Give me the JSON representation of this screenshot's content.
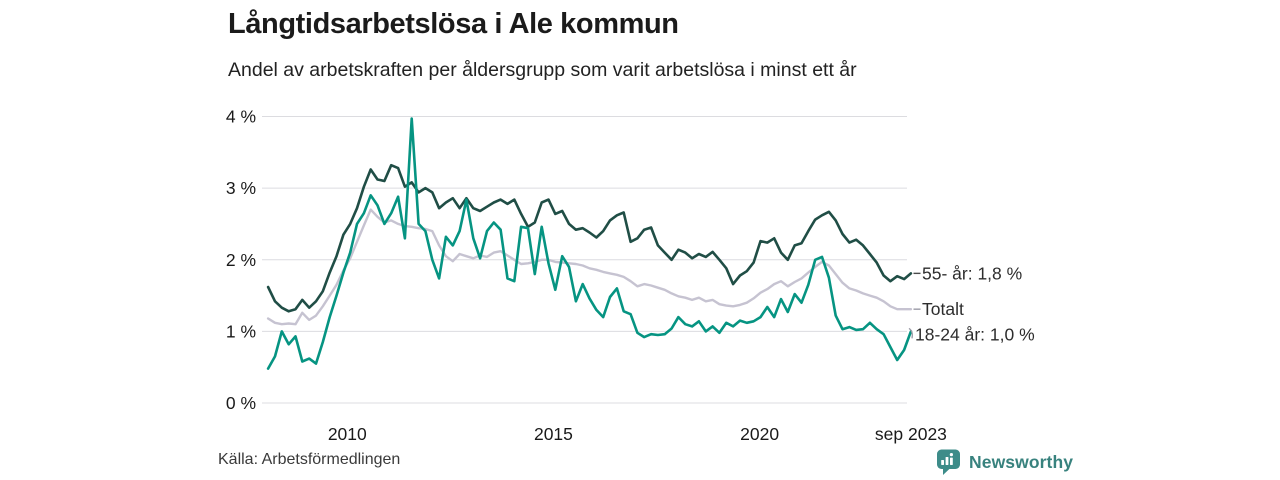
{
  "header": {
    "title": "Långtidsarbetslösa i Ale kommun",
    "subtitle": "Andel av arbetskraften per åldersgrupp som varit arbetslösa i minst ett år"
  },
  "footer": {
    "source": "Källa: Arbetsförmedlingen",
    "brand": "Newsworthy",
    "brand_color": "#38827e",
    "brand_icon": "bar-chart-speech-bubble-icon",
    "brand_icon_color": "#3d8c89"
  },
  "chart_data": {
    "type": "line",
    "title": "Långtidsarbetslösa i Ale kommun",
    "subtitle": "Andel av arbetskraften per åldersgrupp som varit arbetslösa i minst ett år",
    "xlabel": "",
    "ylabel": "",
    "ylim": [
      0,
      4
    ],
    "grid": "horizontal",
    "grid_color": "#dcdce0",
    "axis_text_color": "#1a1a1a",
    "label_text_color": "#2d2d2d",
    "x_start": 2008.08,
    "x_end": 2023.67,
    "y_ticks": [
      {
        "value": 4,
        "label": "4 %"
      },
      {
        "value": 3,
        "label": "3 %"
      },
      {
        "value": 2,
        "label": "2 %"
      },
      {
        "value": 1,
        "label": "1 %"
      },
      {
        "value": 0,
        "label": "0 %"
      }
    ],
    "x_ticks": [
      {
        "value": 2010,
        "label": "2010"
      },
      {
        "value": 2015,
        "label": "2015"
      },
      {
        "value": 2020,
        "label": "2020"
      },
      {
        "value": 2023.67,
        "label": "sep 2023"
      }
    ],
    "draw_order": [
      1,
      0,
      2
    ],
    "series": [
      {
        "id": "age-55-plus",
        "name": "55- år",
        "end_label": "55- år: 1,8 %",
        "end_value_text": "1,8 %",
        "color": "#204e46",
        "stroke_width": 2.6,
        "leader": "dash",
        "leader_color": "#4a4a4a",
        "label_dx": 0,
        "label_dy": 0,
        "values": [
          1.62,
          1.42,
          1.33,
          1.28,
          1.31,
          1.44,
          1.33,
          1.42,
          1.56,
          1.82,
          2.05,
          2.35,
          2.5,
          2.72,
          3.02,
          3.26,
          3.12,
          3.1,
          3.32,
          3.28,
          3.02,
          3.08,
          2.94,
          3.0,
          2.94,
          2.72,
          2.8,
          2.86,
          2.72,
          2.86,
          2.72,
          2.68,
          2.74,
          2.8,
          2.84,
          2.78,
          2.84,
          2.64,
          2.46,
          2.52,
          2.8,
          2.84,
          2.64,
          2.68,
          2.5,
          2.42,
          2.44,
          2.38,
          2.31,
          2.4,
          2.55,
          2.62,
          2.66,
          2.25,
          2.3,
          2.42,
          2.45,
          2.2,
          2.1,
          2.0,
          2.14,
          2.1,
          2.02,
          2.08,
          2.04,
          2.11,
          2.0,
          1.88,
          1.66,
          1.78,
          1.84,
          1.96,
          2.26,
          2.24,
          2.3,
          2.1,
          2.0,
          2.2,
          2.23,
          2.4,
          2.56,
          2.62,
          2.67,
          2.55,
          2.36,
          2.24,
          2.28,
          2.2,
          2.08,
          1.96,
          1.78,
          1.7,
          1.77,
          1.73,
          1.81
        ]
      },
      {
        "id": "total",
        "name": "Totalt",
        "end_label": "Totalt",
        "end_value_text": "",
        "color": "#c6c3d1",
        "stroke_width": 2.4,
        "leader": "dash",
        "leader_color": "#9a9aa6",
        "label_dx": 0,
        "label_dy": 0,
        "values": [
          1.18,
          1.12,
          1.1,
          1.11,
          1.1,
          1.26,
          1.16,
          1.22,
          1.35,
          1.5,
          1.65,
          1.85,
          2.02,
          2.25,
          2.48,
          2.7,
          2.6,
          2.52,
          2.55,
          2.5,
          2.47,
          2.46,
          2.44,
          2.43,
          2.4,
          2.2,
          2.05,
          1.98,
          2.08,
          2.05,
          2.02,
          2.06,
          2.04,
          2.1,
          2.12,
          2.06,
          2.0,
          1.94,
          1.95,
          1.97,
          2.0,
          2.0,
          1.97,
          1.96,
          1.95,
          1.94,
          1.92,
          1.88,
          1.86,
          1.83,
          1.81,
          1.79,
          1.76,
          1.7,
          1.63,
          1.66,
          1.64,
          1.61,
          1.58,
          1.53,
          1.49,
          1.47,
          1.44,
          1.47,
          1.42,
          1.44,
          1.38,
          1.36,
          1.35,
          1.37,
          1.4,
          1.46,
          1.54,
          1.59,
          1.66,
          1.7,
          1.63,
          1.69,
          1.74,
          1.82,
          1.9,
          1.97,
          1.92,
          1.8,
          1.68,
          1.6,
          1.57,
          1.53,
          1.5,
          1.47,
          1.42,
          1.35,
          1.31,
          1.31,
          1.31
        ]
      },
      {
        "id": "age-18-24",
        "name": "18-24 år",
        "end_label": "18-24 år: 1,0 %",
        "end_value_text": "1,0 %",
        "color": "#069482",
        "stroke_width": 2.6,
        "leader": "curve",
        "leader_color": "#9a9aa6",
        "label_dx": -7,
        "label_dy": 3,
        "values": [
          0.48,
          0.65,
          1.0,
          0.82,
          0.93,
          0.58,
          0.62,
          0.55,
          0.85,
          1.2,
          1.5,
          1.82,
          2.1,
          2.5,
          2.65,
          2.9,
          2.76,
          2.5,
          2.65,
          2.88,
          2.3,
          3.97,
          2.5,
          2.4,
          2.0,
          1.74,
          2.32,
          2.2,
          2.4,
          2.84,
          2.3,
          2.02,
          2.4,
          2.52,
          2.42,
          1.74,
          1.7,
          2.46,
          2.44,
          1.8,
          2.46,
          1.95,
          1.58,
          2.05,
          1.9,
          1.42,
          1.66,
          1.46,
          1.3,
          1.2,
          1.48,
          1.6,
          1.28,
          1.24,
          0.98,
          0.92,
          0.96,
          0.95,
          0.96,
          1.04,
          1.2,
          1.1,
          1.07,
          1.14,
          1.0,
          1.07,
          0.98,
          1.12,
          1.07,
          1.15,
          1.12,
          1.14,
          1.2,
          1.34,
          1.2,
          1.45,
          1.27,
          1.52,
          1.4,
          1.65,
          2.0,
          2.04,
          1.75,
          1.22,
          1.03,
          1.06,
          1.02,
          1.03,
          1.12,
          1.03,
          0.96,
          0.78,
          0.6,
          0.74,
          1.0
        ]
      }
    ]
  }
}
